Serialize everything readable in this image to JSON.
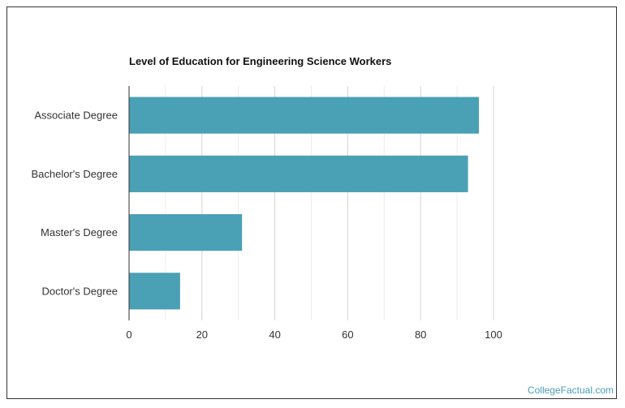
{
  "chart_data": {
    "type": "bar",
    "orientation": "horizontal",
    "title": "Level of Education for Engineering Science Workers",
    "categories": [
      "Associate Degree",
      "Bachelor's Degree",
      "Master's Degree",
      "Doctor's Degree"
    ],
    "values": [
      96,
      93,
      31,
      14
    ],
    "xlim": [
      0,
      100
    ],
    "xticks": [
      0,
      20,
      40,
      60,
      80,
      100
    ],
    "xlabel": "",
    "ylabel": "",
    "grid": true,
    "bar_color": "#4aa0b5"
  },
  "footer": {
    "watermark": "CollegeFactual.com"
  }
}
